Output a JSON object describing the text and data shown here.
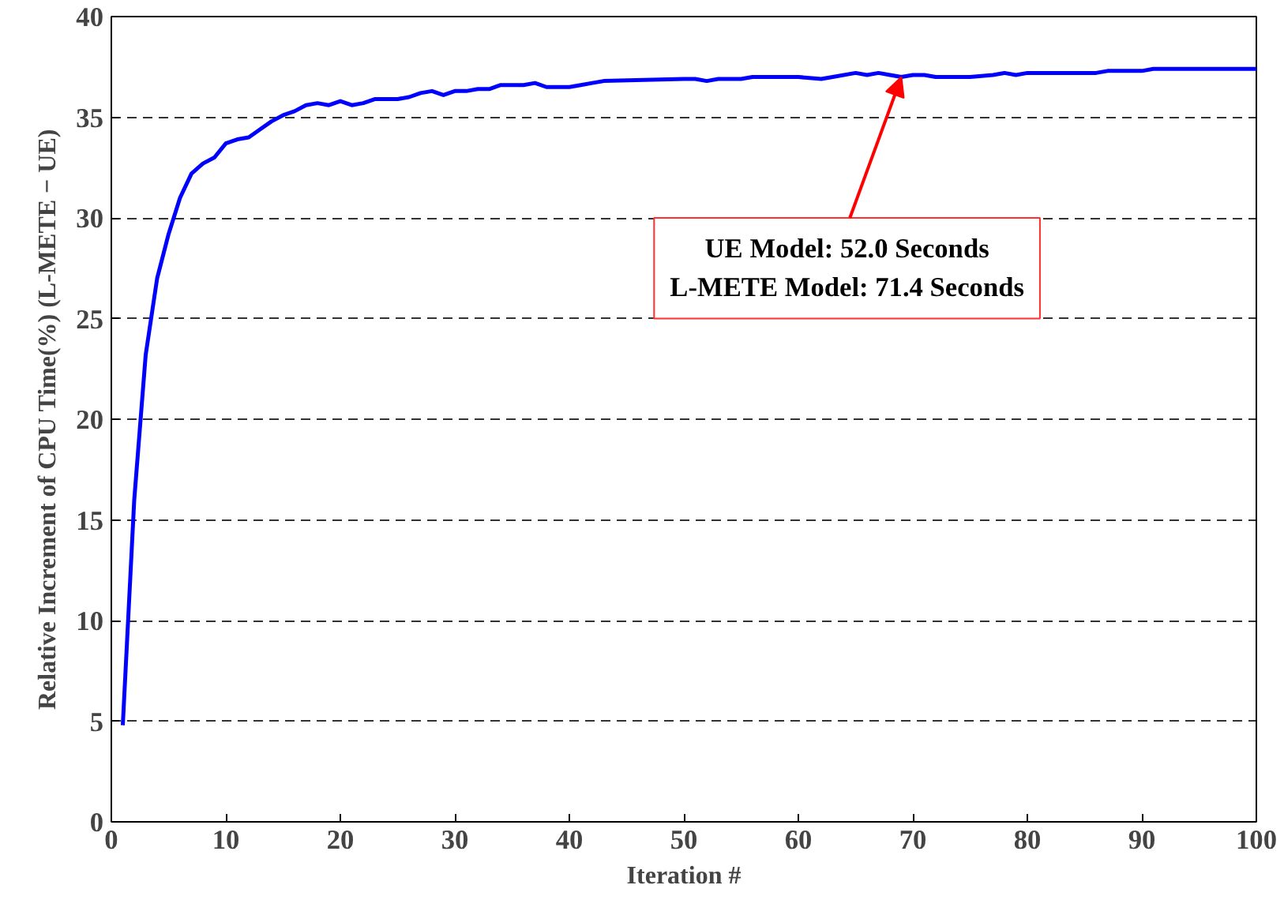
{
  "chart_data": {
    "type": "line",
    "xlabel": "Iteration #",
    "ylabel": "Relative Increment of CPU Time(%) (L-METE − UE)",
    "x": [
      1,
      2,
      3,
      4,
      5,
      6,
      7,
      8,
      9,
      10,
      11,
      12,
      13,
      14,
      15,
      16,
      17,
      18,
      19,
      20,
      21,
      22,
      23,
      24,
      25,
      26,
      27,
      28,
      29,
      30,
      31,
      32,
      33,
      34,
      35,
      36,
      37,
      38,
      39,
      40,
      41,
      42,
      43,
      50,
      51,
      52,
      53,
      55,
      56,
      60,
      62,
      63,
      65,
      66,
      67,
      68,
      69,
      70,
      71,
      72,
      75,
      77,
      78,
      79,
      80,
      85,
      86,
      87,
      90,
      91,
      100
    ],
    "series": [
      {
        "color": "#0000ff",
        "values": [
          4.8,
          16,
          23.2,
          27,
          29.2,
          31,
          32.2,
          32.7,
          33,
          33.7,
          33.9,
          34,
          34.4,
          34.8,
          35.1,
          35.3,
          35.6,
          35.7,
          35.6,
          35.8,
          35.6,
          35.7,
          35.9,
          35.9,
          35.9,
          36,
          36.2,
          36.3,
          36.1,
          36.3,
          36.3,
          36.4,
          36.4,
          36.6,
          36.6,
          36.6,
          36.7,
          36.5,
          36.5,
          36.5,
          36.6,
          36.7,
          36.8,
          36.9,
          36.9,
          36.8,
          36.9,
          36.9,
          37.0,
          37.0,
          36.9,
          37.0,
          37.2,
          37.1,
          37.2,
          37.1,
          37.0,
          37.1,
          37.1,
          37.0,
          37.0,
          37.1,
          37.2,
          37.1,
          37.2,
          37.2,
          37.2,
          37.3,
          37.3,
          37.4,
          37.4
        ]
      }
    ],
    "xlim": [
      0,
      100
    ],
    "ylim": [
      0,
      40
    ],
    "xticks": [
      0,
      10,
      20,
      30,
      40,
      50,
      60,
      70,
      80,
      90,
      100
    ],
    "yticks": [
      0,
      5,
      10,
      15,
      20,
      25,
      30,
      35,
      40
    ],
    "grid": "y",
    "line_style": "solid",
    "marker": "none",
    "annotations": [
      {
        "text": "UE Model: 52.0 Seconds\nL-METE Model: 71.4 Seconds",
        "x": 69,
        "y": 37
      }
    ]
  }
}
